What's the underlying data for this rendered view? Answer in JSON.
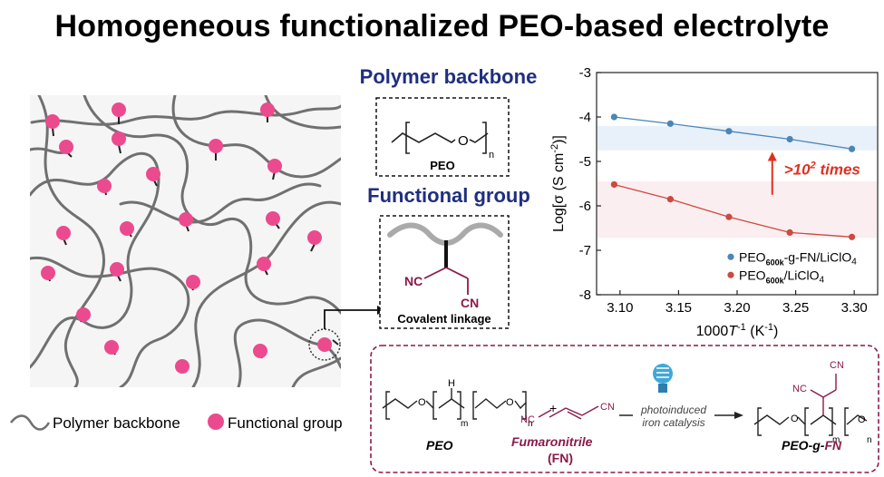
{
  "title": "Homogeneous functionalized PEO-based electrolyte",
  "network_legend": {
    "backbone_label": "Polymer backbone",
    "functional_label": "Functional group"
  },
  "headers": {
    "backbone": "Polymer backbone",
    "functional": "Functional group"
  },
  "peo_box": {
    "label": "PEO",
    "oxygen": "O",
    "subscript": "n"
  },
  "linkage_box": {
    "label": "Covalent linkage",
    "nc": "NC",
    "cn": "CN"
  },
  "reaction": {
    "peo_label": "PEO",
    "plus": "+",
    "fumaronitrile_label": "Fumaronitrile",
    "fn_label": "(FN)",
    "nc": "NC",
    "cn": "CN",
    "h": "H",
    "o": "O",
    "m": "m",
    "n": "n",
    "arrow_line1": "photoinduced",
    "arrow_line2": "iron catalysis",
    "product_label_a": "PEO-g-",
    "product_label_b": "FN",
    "product_nc": "NC",
    "product_cn": "CN"
  },
  "colors": {
    "pink": "#ec4a8e",
    "navy": "#1f2f7f",
    "maroon": "#8b1a4a",
    "blue_series": "#4a86b8",
    "red_series": "#cc4a40",
    "annotation": "#e0301e"
  },
  "chart_data": {
    "type": "line",
    "xlabel_parts": [
      "1000",
      "T",
      "-1",
      " (K",
      "-1",
      ")"
    ],
    "ylabel_parts": [
      "Log[σ (S cm",
      "-2",
      ")]"
    ],
    "xlim": [
      3.08,
      3.32
    ],
    "ylim": [
      -8,
      -3
    ],
    "xticks": [
      "3.10",
      "3.15",
      "3.20",
      "3.25",
      "3.30"
    ],
    "xtick_values": [
      3.1,
      3.15,
      3.2,
      3.25,
      3.3
    ],
    "yticks": [
      "-3",
      "-4",
      "-5",
      "-6",
      "-7",
      "-8"
    ],
    "ytick_values": [
      -3,
      -4,
      -5,
      -6,
      -7,
      -8
    ],
    "annotation": {
      "prefix": ">10",
      "sup": "2",
      "suffix": " times"
    },
    "series": [
      {
        "legend_parts": [
          "PEO",
          "600k",
          "-g-FN/LiClO",
          "4"
        ],
        "color": "#4a86b8",
        "band": [
          -4.2,
          -4.75
        ],
        "band_color": "#e8f0fa",
        "x": [
          3.095,
          3.143,
          3.193,
          3.245,
          3.298
        ],
        "y": [
          -4.0,
          -4.15,
          -4.32,
          -4.5,
          -4.72
        ]
      },
      {
        "legend_parts": [
          "PEO",
          "600k",
          "/LiClO",
          "4"
        ],
        "color": "#cc4a40",
        "band": [
          -5.45,
          -6.72
        ],
        "band_color": "#fbeef0",
        "x": [
          3.095,
          3.143,
          3.193,
          3.245,
          3.298
        ],
        "y": [
          -5.52,
          -5.85,
          -6.25,
          -6.6,
          -6.7
        ]
      }
    ]
  }
}
